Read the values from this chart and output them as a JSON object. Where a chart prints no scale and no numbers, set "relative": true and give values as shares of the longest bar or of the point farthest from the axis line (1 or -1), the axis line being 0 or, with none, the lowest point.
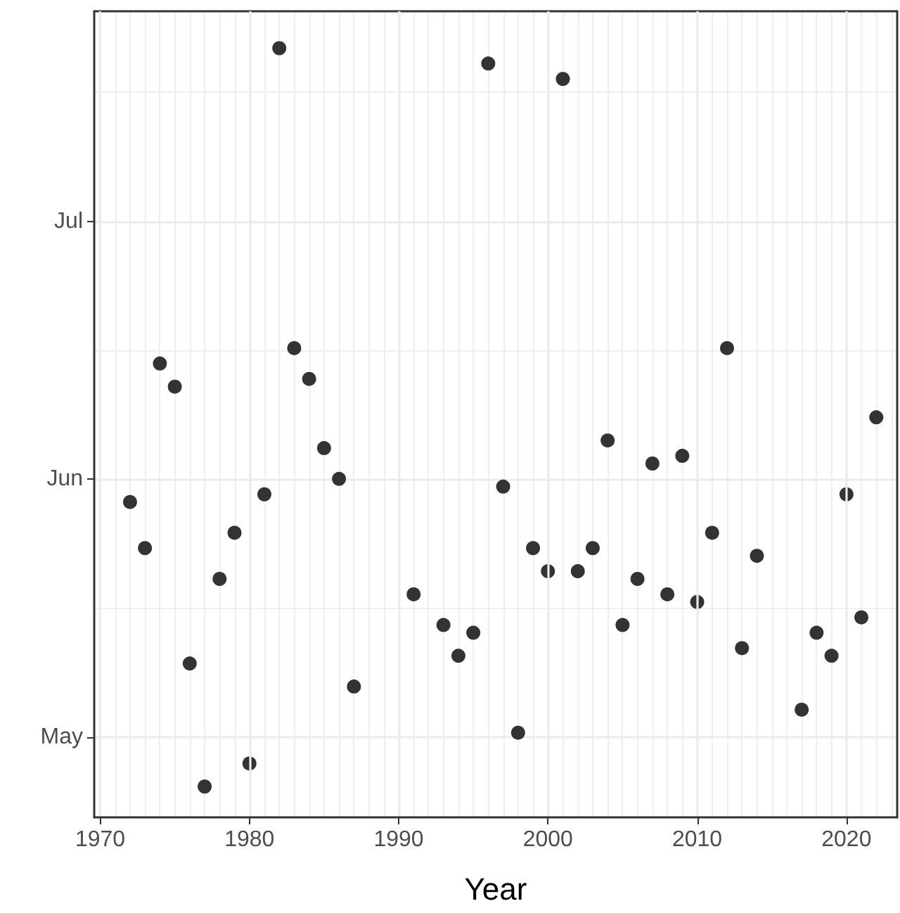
{
  "chart_data": {
    "type": "scatter",
    "xlabel": "Year",
    "relative": true,
    "x": [
      1972,
      1973,
      1974,
      1975,
      1976,
      1977,
      1978,
      1979,
      1980,
      1981,
      1982,
      1983,
      1984,
      1985,
      1986,
      1987,
      1991,
      1993,
      1994,
      1995,
      1996,
      1997,
      1998,
      1999,
      2000,
      2001,
      2002,
      2003,
      2004,
      2005,
      2006,
      2007,
      2008,
      2009,
      2010,
      2011,
      2012,
      2013,
      2014,
      2017,
      2018,
      2019,
      2020,
      2021,
      2022
    ],
    "series": [
      {
        "color": "#333333",
        "values": [
          0.41,
          0.35,
          0.59,
          0.56,
          0.2,
          0.04,
          0.31,
          0.37,
          0.07,
          0.42,
          1,
          0.61,
          0.57,
          0.48,
          0.44,
          0.17,
          0.29,
          0.25,
          0.21,
          0.24,
          0.98,
          0.43,
          0.11,
          0.35,
          0.32,
          0.96,
          0.32,
          0.35,
          0.49,
          0.25,
          0.31,
          0.46,
          0.29,
          0.47,
          0.28,
          0.37,
          0.61,
          0.22,
          0.34,
          0.14,
          0.24,
          0.21,
          0.42,
          0.26,
          0.52
        ]
      }
    ],
    "xlim": [
      1969.6,
      2023.4
    ],
    "xticks": [
      1970,
      1980,
      1990,
      2000,
      2010,
      2020
    ],
    "annotations": [
      "May",
      "Jun",
      "Jul"
    ],
    "grid": true,
    "marker": "circle"
  }
}
